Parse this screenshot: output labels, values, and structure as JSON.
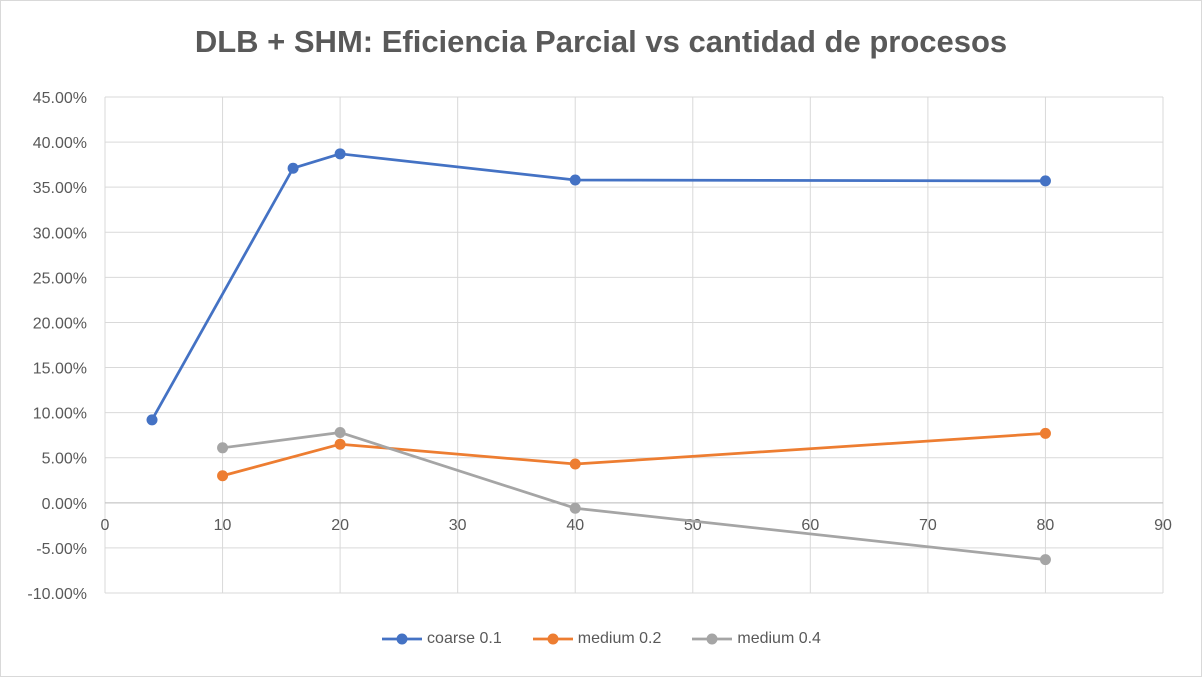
{
  "chart_data": {
    "type": "scatter",
    "title": "DLB + SHM: Eficiencia Parcial vs cantidad de procesos",
    "xlim": [
      0,
      90
    ],
    "ylim": [
      -10,
      45
    ],
    "x_ticks": [
      0,
      10,
      20,
      30,
      40,
      50,
      60,
      70,
      80,
      90
    ],
    "y_ticks": [
      -10,
      -5,
      0,
      5,
      10,
      15,
      20,
      25,
      30,
      35,
      40,
      45
    ],
    "y_format": "percent_2dp",
    "grid": true,
    "legend_position": "bottom",
    "series": [
      {
        "name": "coarse 0.1",
        "color": "#4472C4",
        "x": [
          4,
          16,
          20,
          40,
          80
        ],
        "y": [
          9.2,
          37.1,
          38.7,
          35.8,
          35.7
        ]
      },
      {
        "name": "medium 0.2",
        "color": "#ED7D31",
        "x": [
          10,
          20,
          40,
          80
        ],
        "y": [
          3.0,
          6.5,
          4.3,
          7.7
        ]
      },
      {
        "name": "medium 0.4",
        "color": "#A5A5A5",
        "x": [
          10,
          20,
          40,
          80
        ],
        "y": [
          6.1,
          7.8,
          -0.6,
          -6.3
        ]
      }
    ]
  }
}
